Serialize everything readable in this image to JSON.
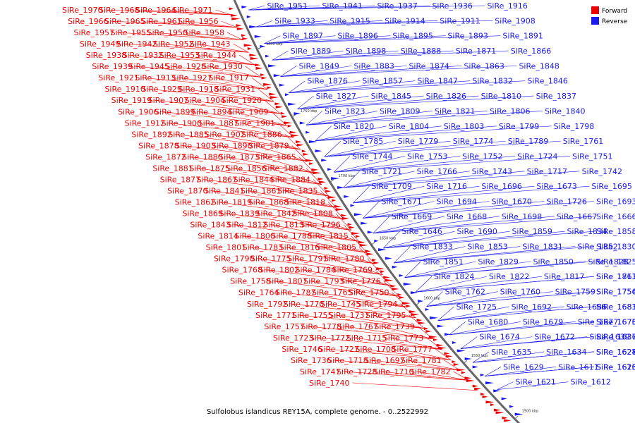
{
  "caption": "Sulfolobus islandicus REY15A, complete genome. - 0..2522992",
  "legend": [
    {
      "label": "Forward",
      "color": "#ee0000"
    },
    {
      "label": "Reverse",
      "color": "#1a1aee"
    }
  ],
  "colors": {
    "forward": "#ee0000",
    "reverse": "#1a1aee",
    "backbone": "#666666"
  },
  "ticks": [
    "1800 kbp",
    "1750 kbp",
    "1700 kbp",
    "1650 kbp",
    "1600 kbp",
    "1550 kbp",
    "1500 kbp"
  ],
  "forward_labels": [
    "SiRe_1970",
    "SiRe_1968",
    "SiRe_1964",
    "SiRe_1971",
    "SiRe_1966",
    "SiRe_1965",
    "SiRe_1961",
    "SiRe_1956",
    "SiRe_1957",
    "SiRe_1955",
    "SiRe_1950",
    "SiRe_1958",
    "SiRe_1949",
    "SiRe_1942",
    "SiRe_1952",
    "SiRe_1943",
    "SiRe_1938",
    "SiRe_1932",
    "SiRe_1953",
    "SiRe_1944",
    "SiRe_1939",
    "SiRe_1945",
    "SiRe_1928",
    "SiRe_1930",
    "SiRe_1921",
    "SiRe_1913",
    "SiRe_1927",
    "SiRe_1917",
    "SiRe_1910",
    "SiRe_1929",
    "SiRe_1918",
    "SiRe_1931",
    "SiRe_1919",
    "SiRe_1907",
    "SiRe_1904",
    "SiRe_1920",
    "SiRe_1906",
    "SiRe_1899",
    "SiRe_1894",
    "SiRe_1909",
    "SiRe_1912",
    "SiRe_1900",
    "SiRe_1887",
    "SiRe_1901",
    "SiRe_1892",
    "SiRe_1885",
    "SiRe_1902",
    "SiRe_1886",
    "SiRe_1878",
    "SiRe_1903",
    "SiRe_1890",
    "SiRe_1879",
    "SiRe_1872",
    "SiRe_1880",
    "SiRe_1873",
    "SiRe_1865",
    "SiRe_1881",
    "SiRe_1875",
    "SiRe_1856",
    "SiRe_1882",
    "SiRe_1877",
    "SiRe_1867",
    "SiRe_1844",
    "SiRe_1884",
    "SiRe_1870",
    "SiRe_1841",
    "SiRe_1861",
    "SiRe_1835",
    "SiRe_1862",
    "SiRe_1819",
    "SiRe_1868",
    "SiRe_1818",
    "SiRe_1869",
    "SiRe_1839",
    "SiRe_1842",
    "SiRe_1808",
    "SiRe_1843",
    "SiRe_1812",
    "SiRe_1813",
    "SiRe_1796",
    "SiRe_1814",
    "SiRe_1800",
    "SiRe_1788",
    "SiRe_1815",
    "SiRe_1801",
    "SiRe_1783",
    "SiRe_1816",
    "SiRe_1805",
    "SiRe_1790",
    "SiRe_1775",
    "SiRe_1791",
    "SiRe_1780",
    "SiRe_1768",
    "SiRe_1802",
    "SiRe_1784",
    "SiRe_1769",
    "SiRe_1758",
    "SiRe_1807",
    "SiRe_1793",
    "SiRe_1776",
    "SiRe_1764",
    "SiRe_1787",
    "SiRe_1765",
    "SiRe_1750",
    "SiRe_1792",
    "SiRe_1770",
    "SiRe_1745",
    "SiRe_1794",
    "SiRe_1771",
    "SiRe_1755",
    "SiRe_1737",
    "SiRe_1795",
    "SiRe_1757",
    "SiRe_1778",
    "SiRe_1767",
    "SiRe_1739",
    "SiRe_1723",
    "SiRe_1772",
    "SiRe_1715",
    "SiRe_1773",
    "SiRe_1746",
    "SiRe_1727",
    "SiRe_1708",
    "SiRe_1777",
    "SiRe_1736",
    "SiRe_1718",
    "SiRe_1697",
    "SiRe_1781",
    "SiRe_1747",
    "SiRe_1728",
    "SiRe_1710",
    "SiRe_1782",
    "SiRe_1740"
  ],
  "reverse_labels": [
    "SiRe_1951",
    "SiRe_1941",
    "SiRe_1937",
    "SiRe_1936",
    "SiRe_1916",
    "SiRe_1933",
    "SiRe_1915",
    "SiRe_1914",
    "SiRe_1911",
    "SiRe_1908",
    "SiRe_1897",
    "SiRe_1896",
    "SiRe_1895",
    "SiRe_1893",
    "SiRe_1891",
    "SiRe_1889",
    "SiRe_1898",
    "SiRe_1888",
    "SiRe_1871",
    "SiRe_1866",
    "SiRe_1849",
    "SiRe_1883",
    "SiRe_1874",
    "SiRe_1863",
    "SiRe_1848",
    "SiRe_1876",
    "SiRe_1857",
    "SiRe_1847",
    "SiRe_1832",
    "SiRe_1846",
    "SiRe_1827",
    "SiRe_1845",
    "SiRe_1826",
    "SiRe_1810",
    "SiRe_1837",
    "SiRe_1823",
    "SiRe_1809",
    "SiRe_1821",
    "SiRe_1806",
    "SiRe_1840",
    "SiRe_1820",
    "SiRe_1804",
    "SiRe_1803",
    "SiRe_1799",
    "SiRe_1798",
    "SiRe_1785",
    "SiRe_1779",
    "SiRe_1774",
    "SiRe_1789",
    "SiRe_1761",
    "SiRe_1744",
    "SiRe_1753",
    "SiRe_1752",
    "SiRe_1724",
    "SiRe_1751",
    "SiRe_1721",
    "SiRe_1766",
    "SiRe_1743",
    "SiRe_1717",
    "SiRe_1742",
    "SiRe_1709",
    "SiRe_1716",
    "SiRe_1696",
    "SiRe_1673",
    "SiRe_1695",
    "SiRe_1671",
    "SiRe_1694",
    "SiRe_1670",
    "SiRe_1726",
    "SiRe_1693",
    "SiRe_1669",
    "SiRe_1668",
    "SiRe_1698",
    "SiRe_1667",
    "SiRe_1666",
    "SiRe_1646",
    "SiRe_1690",
    "SiRe_1859",
    "SiRe_1834",
    "SiRe_1858",
    "SiRe_1833",
    "SiRe_1853",
    "SiRe_1831",
    "SiRe_1852",
    "SiRe_1830",
    "SiRe_1851",
    "SiRe_1829",
    "SiRe_1850",
    "SiRe_1828",
    "SiRe_1825",
    "SiRe_1824",
    "SiRe_1822",
    "SiRe_1817",
    "SiRe_1811",
    "SiRe_1763",
    "SiRe_1762",
    "SiRe_1760",
    "SiRe_1759",
    "SiRe_1756",
    "SiRe_1754",
    "SiRe_1725",
    "SiRe_1692",
    "SiRe_1686",
    "SiRe_1683",
    "SiRe_1681",
    "SiRe_1680",
    "SiRe_1679",
    "SiRe_1677",
    "SiRe_1676",
    "SiRe_1675",
    "SiRe_1674",
    "SiRe_1672",
    "SiRe_1639",
    "SiRe_1637",
    "SiRe_1636",
    "SiRe_1635",
    "SiRe_1634",
    "SiRe_1628",
    "SiRe_1627",
    "SiRe_1624",
    "SiRe_1629",
    "SiRe_1611",
    "SiRe_1626",
    "SiRe_1610",
    "SiRe_1623",
    "SiRe_1621",
    "SiRe_1612"
  ]
}
